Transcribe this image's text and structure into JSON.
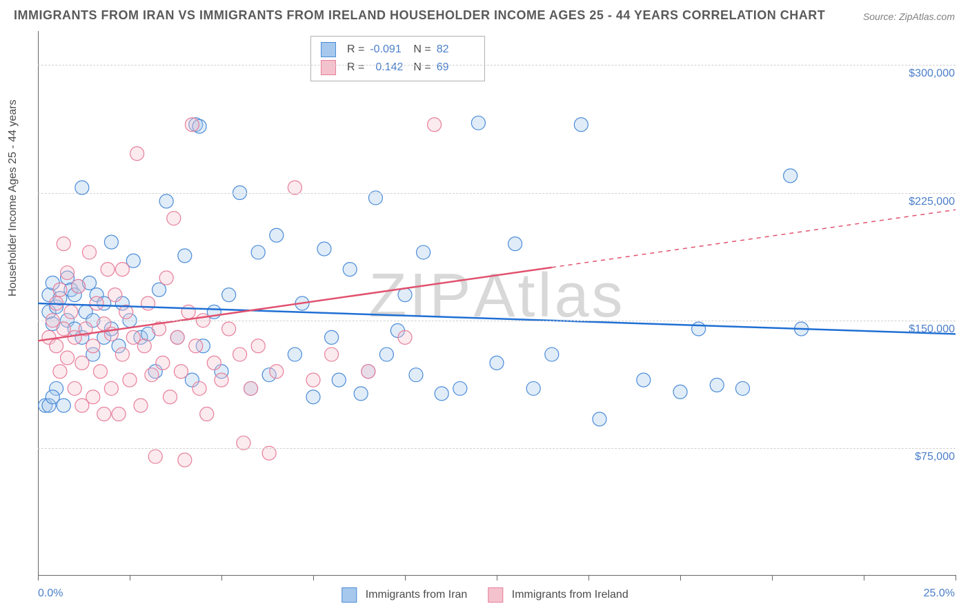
{
  "title": "IMMIGRANTS FROM IRAN VS IMMIGRANTS FROM IRELAND HOUSEHOLDER INCOME AGES 25 - 44 YEARS CORRELATION CHART",
  "source": "Source: ZipAtlas.com",
  "ylabel": "Householder Income Ages 25 - 44 years",
  "watermark": "ZIPAtlas",
  "chart": {
    "type": "scatter",
    "xlim": [
      0,
      25
    ],
    "ylim": [
      0,
      320000
    ],
    "x_tick_label_min": "0.0%",
    "x_tick_label_max": "25.0%",
    "x_tick_positions": [
      0,
      2.5,
      5,
      7.5,
      10,
      12.5,
      15,
      17.5,
      20,
      22.5,
      25
    ],
    "y_gridlines": [
      75000,
      150000,
      225000,
      300000
    ],
    "y_tick_labels": [
      "$75,000",
      "$150,000",
      "$225,000",
      "$300,000"
    ],
    "background_color": "#ffffff",
    "grid_color": "#d0d0d0",
    "axis_color": "#666666",
    "title_color": "#5a5a5a",
    "label_color": "#4a4a4a",
    "tick_label_color": "#4a7ec9",
    "title_fontsize": 18,
    "label_fontsize": 16,
    "marker_radius": 10,
    "marker_fill_opacity": 0.35,
    "marker_stroke_width": 1.2,
    "line_width": 2.5
  },
  "series": [
    {
      "name": "Immigrants from Iran",
      "fill": "#a6c8ec",
      "stroke": "#4a8bd8",
      "trend_color": "#1f6fd4",
      "r_value": "-0.091",
      "n_value": "82",
      "trend": {
        "x1": 0,
        "y1": 160000,
        "x2": 25,
        "y2": 142000,
        "dash_from_x": null
      },
      "points": [
        [
          0.2,
          100000
        ],
        [
          0.3,
          155000
        ],
        [
          0.3,
          165000
        ],
        [
          0.4,
          148000
        ],
        [
          0.4,
          172000
        ],
        [
          0.5,
          110000
        ],
        [
          0.5,
          158000
        ],
        [
          0.6,
          163000
        ],
        [
          0.7,
          100000
        ],
        [
          0.8,
          150000
        ],
        [
          0.8,
          175000
        ],
        [
          0.9,
          168000
        ],
        [
          1.0,
          145000
        ],
        [
          1.0,
          165000
        ],
        [
          1.1,
          170000
        ],
        [
          1.2,
          140000
        ],
        [
          1.2,
          228000
        ],
        [
          1.3,
          155000
        ],
        [
          1.4,
          172000
        ],
        [
          1.5,
          130000
        ],
        [
          1.5,
          150000
        ],
        [
          1.6,
          165000
        ],
        [
          1.8,
          140000
        ],
        [
          1.8,
          160000
        ],
        [
          2.0,
          145000
        ],
        [
          2.0,
          196000
        ],
        [
          2.2,
          135000
        ],
        [
          2.3,
          160000
        ],
        [
          2.5,
          150000
        ],
        [
          2.6,
          185000
        ],
        [
          2.8,
          140000
        ],
        [
          3.0,
          142000
        ],
        [
          3.2,
          120000
        ],
        [
          3.3,
          168000
        ],
        [
          3.5,
          220000
        ],
        [
          3.8,
          140000
        ],
        [
          4.0,
          188000
        ],
        [
          4.2,
          115000
        ],
        [
          4.3,
          265000
        ],
        [
          4.4,
          264000
        ],
        [
          4.5,
          135000
        ],
        [
          4.8,
          155000
        ],
        [
          5.0,
          120000
        ],
        [
          5.2,
          165000
        ],
        [
          5.5,
          225000
        ],
        [
          5.8,
          110000
        ],
        [
          6.0,
          190000
        ],
        [
          6.3,
          118000
        ],
        [
          6.5,
          200000
        ],
        [
          7.0,
          130000
        ],
        [
          7.2,
          160000
        ],
        [
          7.5,
          105000
        ],
        [
          7.8,
          192000
        ],
        [
          8.0,
          140000
        ],
        [
          8.2,
          115000
        ],
        [
          8.5,
          180000
        ],
        [
          8.8,
          107000
        ],
        [
          9.0,
          120000
        ],
        [
          9.2,
          222000
        ],
        [
          9.5,
          130000
        ],
        [
          9.8,
          144000
        ],
        [
          10.0,
          165000
        ],
        [
          10.3,
          118000
        ],
        [
          10.5,
          190000
        ],
        [
          11.0,
          107000
        ],
        [
          11.5,
          110000
        ],
        [
          12.0,
          266000
        ],
        [
          12.5,
          125000
        ],
        [
          13.0,
          195000
        ],
        [
          13.5,
          110000
        ],
        [
          14.0,
          130000
        ],
        [
          14.8,
          265000
        ],
        [
          15.3,
          92000
        ],
        [
          16.5,
          115000
        ],
        [
          17.5,
          108000
        ],
        [
          18.0,
          145000
        ],
        [
          18.5,
          112000
        ],
        [
          19.2,
          110000
        ],
        [
          20.5,
          235000
        ],
        [
          20.8,
          145000
        ],
        [
          0.3,
          100000
        ],
        [
          0.4,
          105000
        ]
      ]
    },
    {
      "name": "Immigrants from Ireland",
      "fill": "#f4c2cd",
      "stroke": "#e77e9a",
      "trend_color": "#e1516f",
      "r_value": "0.142",
      "n_value": "69",
      "trend": {
        "x1": 0,
        "y1": 138000,
        "x2": 25,
        "y2": 215000,
        "dash_from_x": 14
      },
      "points": [
        [
          0.3,
          140000
        ],
        [
          0.4,
          150000
        ],
        [
          0.5,
          135000
        ],
        [
          0.5,
          160000
        ],
        [
          0.6,
          120000
        ],
        [
          0.7,
          145000
        ],
        [
          0.7,
          195000
        ],
        [
          0.8,
          128000
        ],
        [
          0.9,
          155000
        ],
        [
          1.0,
          110000
        ],
        [
          1.0,
          140000
        ],
        [
          1.1,
          170000
        ],
        [
          1.2,
          125000
        ],
        [
          1.3,
          145000
        ],
        [
          1.4,
          190000
        ],
        [
          1.5,
          105000
        ],
        [
          1.5,
          135000
        ],
        [
          1.6,
          160000
        ],
        [
          1.7,
          120000
        ],
        [
          1.8,
          148000
        ],
        [
          1.9,
          180000
        ],
        [
          2.0,
          110000
        ],
        [
          2.0,
          142000
        ],
        [
          2.1,
          165000
        ],
        [
          2.2,
          95000
        ],
        [
          2.3,
          130000
        ],
        [
          2.4,
          155000
        ],
        [
          2.5,
          115000
        ],
        [
          2.6,
          140000
        ],
        [
          2.7,
          248000
        ],
        [
          2.8,
          100000
        ],
        [
          2.9,
          135000
        ],
        [
          3.0,
          160000
        ],
        [
          3.1,
          118000
        ],
        [
          3.2,
          70000
        ],
        [
          3.3,
          145000
        ],
        [
          3.4,
          125000
        ],
        [
          3.5,
          175000
        ],
        [
          3.6,
          105000
        ],
        [
          3.7,
          210000
        ],
        [
          3.8,
          140000
        ],
        [
          3.9,
          120000
        ],
        [
          4.0,
          68000
        ],
        [
          4.1,
          155000
        ],
        [
          4.2,
          265000
        ],
        [
          4.3,
          135000
        ],
        [
          4.4,
          110000
        ],
        [
          4.5,
          150000
        ],
        [
          4.6,
          95000
        ],
        [
          4.8,
          125000
        ],
        [
          5.0,
          115000
        ],
        [
          5.2,
          145000
        ],
        [
          5.5,
          130000
        ],
        [
          5.6,
          78000
        ],
        [
          5.8,
          110000
        ],
        [
          6.0,
          135000
        ],
        [
          6.3,
          72000
        ],
        [
          6.5,
          120000
        ],
        [
          7.0,
          228000
        ],
        [
          7.5,
          115000
        ],
        [
          8.0,
          130000
        ],
        [
          9.0,
          120000
        ],
        [
          10.0,
          140000
        ],
        [
          10.8,
          265000
        ],
        [
          1.2,
          100000
        ],
        [
          1.8,
          95000
        ],
        [
          2.3,
          180000
        ],
        [
          0.6,
          168000
        ],
        [
          0.8,
          178000
        ]
      ]
    }
  ],
  "top_legend": {
    "r_label": "R =",
    "n_label": "N ="
  },
  "bottom_legend": {
    "label1": "Immigrants from Iran",
    "label2": "Immigrants from Ireland"
  }
}
